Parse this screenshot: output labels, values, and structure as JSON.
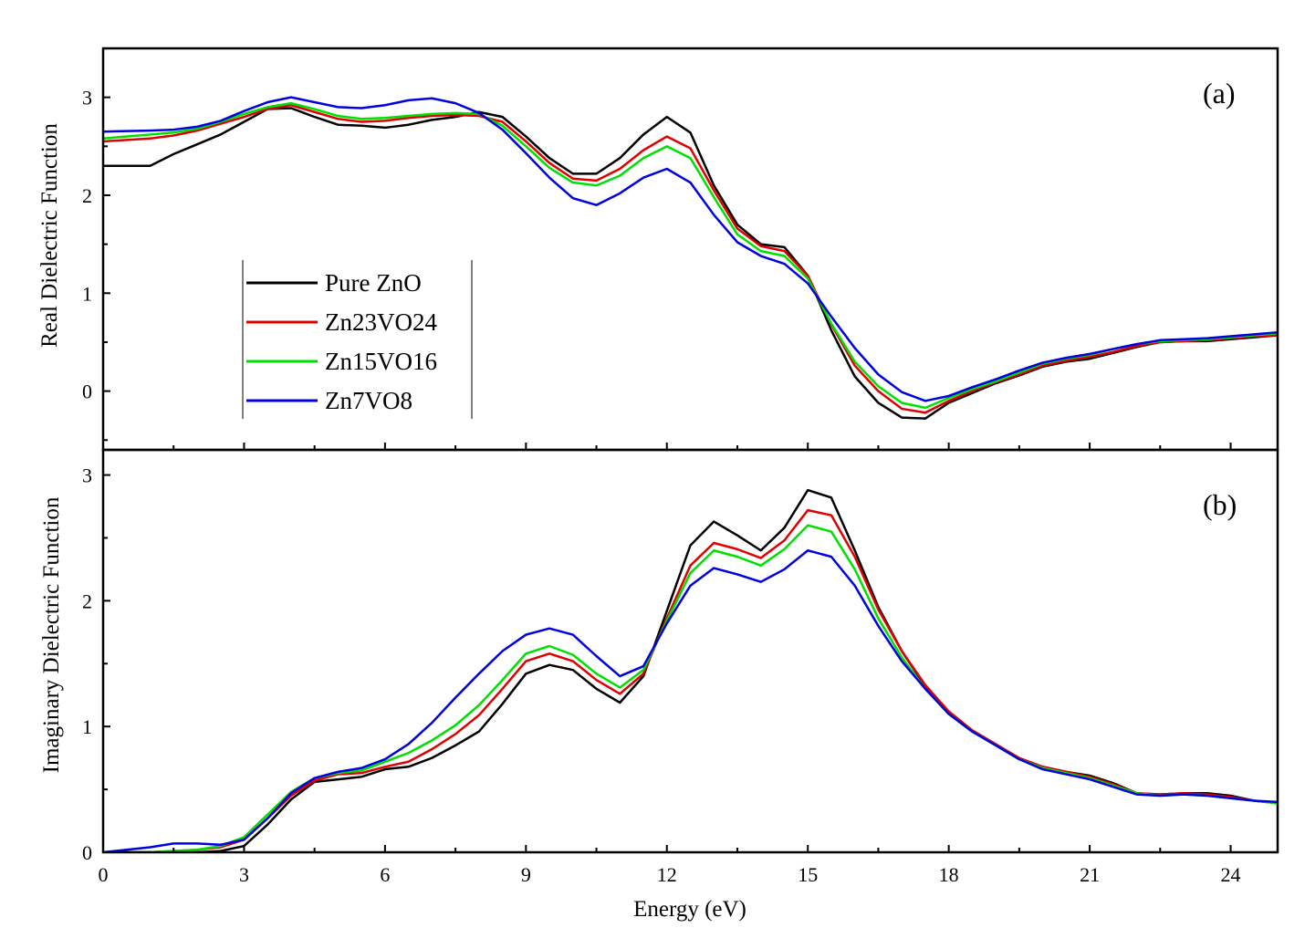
{
  "figure": {
    "xlabel": "Energy (eV)",
    "x_ticks": [
      "0",
      "3",
      "6",
      "9",
      "12",
      "15",
      "18",
      "21",
      "24"
    ]
  },
  "colors": {
    "Pure ZnO": "#000000",
    "Zn23VO24": "#e00000",
    "Zn15VO16": "#00e000",
    "Zn7VO8": "#0000e0"
  },
  "legend": {
    "position": "left-middle of panel (a)",
    "entries": [
      "Pure ZnO",
      "Zn23VO24",
      "Zn15VO16",
      "Zn7VO8"
    ]
  },
  "chart_data": [
    {
      "type": "line",
      "panel_label": "(a)",
      "title": "",
      "xlabel": "",
      "ylabel": "Real Dielectric Function",
      "xlim": [
        0,
        25
      ],
      "ylim": [
        -0.6,
        3.5
      ],
      "y_ticks": [
        "0",
        "1",
        "2",
        "3"
      ],
      "grid": false,
      "x": [
        0,
        1,
        1.5,
        2,
        2.5,
        3,
        3.5,
        4,
        4.5,
        5,
        5.5,
        6,
        6.5,
        7,
        7.5,
        8,
        8.5,
        9,
        9.5,
        10,
        10.5,
        11,
        11.5,
        12,
        12.5,
        13,
        13.5,
        14,
        14.5,
        15,
        15.5,
        16,
        16.5,
        17,
        17.5,
        18,
        18.5,
        19,
        19.5,
        20,
        20.5,
        21,
        21.5,
        22,
        22.5,
        23,
        23.5,
        24,
        24.5,
        25
      ],
      "series": [
        {
          "name": "Pure ZnO",
          "values": [
            2.3,
            2.3,
            2.42,
            2.52,
            2.62,
            2.75,
            2.88,
            2.89,
            2.8,
            2.72,
            2.71,
            2.69,
            2.72,
            2.77,
            2.8,
            2.85,
            2.8,
            2.6,
            2.38,
            2.22,
            2.22,
            2.38,
            2.62,
            2.8,
            2.64,
            2.1,
            1.7,
            1.5,
            1.47,
            1.18,
            0.62,
            0.15,
            -0.12,
            -0.27,
            -0.28,
            -0.12,
            -0.02,
            0.08,
            0.16,
            0.25,
            0.3,
            0.33,
            0.39,
            0.45,
            0.5,
            0.51,
            0.51,
            0.53,
            0.55,
            0.57
          ]
        },
        {
          "name": "Zn23VO24",
          "values": [
            2.55,
            2.58,
            2.61,
            2.66,
            2.73,
            2.8,
            2.88,
            2.92,
            2.85,
            2.78,
            2.75,
            2.76,
            2.79,
            2.81,
            2.82,
            2.81,
            2.75,
            2.55,
            2.33,
            2.17,
            2.15,
            2.27,
            2.46,
            2.6,
            2.48,
            2.05,
            1.66,
            1.48,
            1.43,
            1.18,
            0.68,
            0.26,
            0.0,
            -0.18,
            -0.22,
            -0.1,
            -0.0,
            0.09,
            0.17,
            0.26,
            0.31,
            0.35,
            0.4,
            0.46,
            0.5,
            0.51,
            0.52,
            0.54,
            0.56,
            0.57
          ]
        },
        {
          "name": "Zn15VO16",
          "values": [
            2.58,
            2.62,
            2.64,
            2.68,
            2.75,
            2.83,
            2.9,
            2.94,
            2.88,
            2.81,
            2.78,
            2.79,
            2.81,
            2.83,
            2.84,
            2.83,
            2.71,
            2.5,
            2.28,
            2.13,
            2.1,
            2.2,
            2.38,
            2.5,
            2.38,
            1.98,
            1.6,
            1.43,
            1.38,
            1.15,
            0.69,
            0.3,
            0.05,
            -0.12,
            -0.17,
            -0.07,
            0.02,
            0.1,
            0.19,
            0.28,
            0.33,
            0.37,
            0.43,
            0.48,
            0.51,
            0.52,
            0.53,
            0.55,
            0.57,
            0.59
          ]
        },
        {
          "name": "Zn7VO8",
          "values": [
            2.65,
            2.66,
            2.67,
            2.7,
            2.76,
            2.86,
            2.95,
            3.0,
            2.95,
            2.9,
            2.89,
            2.92,
            2.97,
            2.99,
            2.94,
            2.84,
            2.67,
            2.43,
            2.18,
            1.97,
            1.9,
            2.02,
            2.18,
            2.27,
            2.13,
            1.8,
            1.52,
            1.38,
            1.3,
            1.1,
            0.76,
            0.44,
            0.17,
            -0.01,
            -0.1,
            -0.05,
            0.04,
            0.12,
            0.21,
            0.29,
            0.34,
            0.38,
            0.43,
            0.48,
            0.52,
            0.53,
            0.54,
            0.56,
            0.58,
            0.6
          ]
        }
      ]
    },
    {
      "type": "line",
      "panel_label": "(b)",
      "title": "",
      "xlabel": "Energy (eV)",
      "ylabel": "Imaginary Dielectric Function",
      "xlim": [
        0,
        25
      ],
      "ylim": [
        0,
        3.2
      ],
      "y_ticks": [
        "0",
        "1",
        "2",
        "3"
      ],
      "grid": false,
      "x": [
        0,
        1,
        1.5,
        2,
        2.5,
        3,
        3.5,
        4,
        4.5,
        5,
        5.5,
        6,
        6.5,
        7,
        7.5,
        8,
        8.5,
        9,
        9.5,
        10,
        10.5,
        11,
        11.5,
        12,
        12.5,
        13,
        13.5,
        14,
        14.5,
        15,
        15.5,
        16,
        16.5,
        17,
        17.5,
        18,
        18.5,
        19,
        19.5,
        20,
        20.5,
        21,
        21.5,
        22,
        22.5,
        23,
        23.5,
        24,
        24.5,
        25
      ],
      "series": [
        {
          "name": "Pure ZnO",
          "values": [
            0,
            0,
            0,
            0,
            0.01,
            0.05,
            0.22,
            0.42,
            0.56,
            0.58,
            0.6,
            0.66,
            0.68,
            0.75,
            0.85,
            0.96,
            1.18,
            1.42,
            1.49,
            1.45,
            1.3,
            1.19,
            1.4,
            1.92,
            2.44,
            2.63,
            2.52,
            2.4,
            2.58,
            2.88,
            2.82,
            2.4,
            1.95,
            1.6,
            1.32,
            1.1,
            0.96,
            0.85,
            0.74,
            0.68,
            0.64,
            0.61,
            0.55,
            0.47,
            0.46,
            0.47,
            0.47,
            0.45,
            0.41,
            0.39
          ]
        },
        {
          "name": "Zn23VO24",
          "values": [
            0,
            0,
            0.01,
            0.02,
            0.04,
            0.1,
            0.27,
            0.45,
            0.57,
            0.62,
            0.63,
            0.68,
            0.72,
            0.82,
            0.94,
            1.09,
            1.3,
            1.52,
            1.58,
            1.52,
            1.37,
            1.26,
            1.42,
            1.86,
            2.28,
            2.46,
            2.41,
            2.34,
            2.48,
            2.72,
            2.68,
            2.35,
            1.93,
            1.6,
            1.33,
            1.12,
            0.97,
            0.86,
            0.75,
            0.68,
            0.64,
            0.6,
            0.54,
            0.47,
            0.46,
            0.47,
            0.46,
            0.44,
            0.41,
            0.39
          ]
        },
        {
          "name": "Zn15VO16",
          "values": [
            0,
            0,
            0.01,
            0.02,
            0.05,
            0.12,
            0.3,
            0.48,
            0.59,
            0.63,
            0.65,
            0.72,
            0.79,
            0.89,
            1.01,
            1.17,
            1.37,
            1.58,
            1.64,
            1.57,
            1.42,
            1.31,
            1.45,
            1.84,
            2.22,
            2.4,
            2.35,
            2.28,
            2.41,
            2.6,
            2.55,
            2.25,
            1.86,
            1.55,
            1.3,
            1.1,
            0.96,
            0.85,
            0.74,
            0.67,
            0.63,
            0.59,
            0.53,
            0.47,
            0.45,
            0.46,
            0.45,
            0.43,
            0.41,
            0.39
          ]
        },
        {
          "name": "Zn7VO8",
          "values": [
            0,
            0.04,
            0.07,
            0.07,
            0.06,
            0.1,
            0.27,
            0.47,
            0.59,
            0.64,
            0.67,
            0.74,
            0.86,
            1.03,
            1.23,
            1.42,
            1.6,
            1.73,
            1.78,
            1.73,
            1.56,
            1.4,
            1.48,
            1.82,
            2.12,
            2.26,
            2.21,
            2.15,
            2.25,
            2.4,
            2.35,
            2.12,
            1.8,
            1.52,
            1.3,
            1.1,
            0.96,
            0.85,
            0.74,
            0.66,
            0.62,
            0.58,
            0.52,
            0.46,
            0.45,
            0.46,
            0.45,
            0.43,
            0.41,
            0.4
          ]
        }
      ]
    }
  ]
}
